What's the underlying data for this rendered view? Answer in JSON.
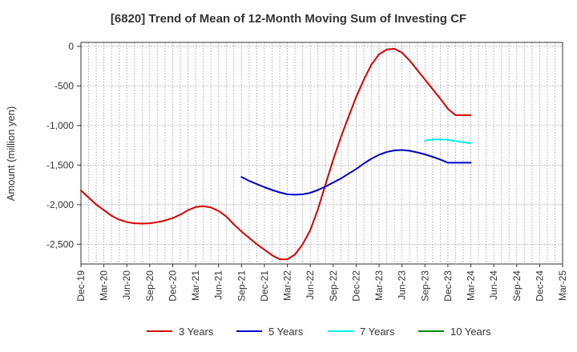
{
  "chart_data": {
    "type": "line",
    "title": "[6820]  Trend of Mean of 12-Month Moving Sum of Investing CF",
    "xlabel": "",
    "ylabel": "Amount (million yen)",
    "ylim": [
      -2750,
      50
    ],
    "yticks": [
      0,
      -500,
      -1000,
      -1500,
      -2000,
      -2500
    ],
    "ytick_labels": [
      "0",
      "-500",
      "-1,000",
      "-1,500",
      "-2,000",
      "-2,500"
    ],
    "xticks": [
      "Dec-19",
      "Mar-20",
      "Jun-20",
      "Sep-20",
      "Dec-20",
      "Mar-21",
      "Jun-21",
      "Sep-21",
      "Dec-21",
      "Mar-22",
      "Jun-22",
      "Sep-22",
      "Dec-22",
      "Mar-23",
      "Jun-23",
      "Sep-23",
      "Dec-23",
      "Mar-24",
      "Jun-24",
      "Sep-24",
      "Dec-24",
      "Mar-25"
    ],
    "grid": true,
    "legend_position": "bottom",
    "x_start": "Dec-19",
    "x_unit": "months since Dec-19",
    "series": [
      {
        "name": "3 Years",
        "color": "#dd0000",
        "x": [
          0,
          1,
          2,
          3,
          4,
          5,
          6,
          7,
          8,
          9,
          10,
          11,
          12,
          13,
          14,
          15,
          16,
          17,
          18,
          19,
          20,
          21,
          22,
          23,
          24,
          25,
          26,
          27,
          28,
          29,
          30,
          31,
          32,
          33,
          34,
          35,
          36,
          37,
          38,
          39,
          40,
          41,
          42,
          43,
          44,
          45,
          46,
          47,
          48,
          49,
          50,
          51
        ],
        "values": [
          -1820,
          -1910,
          -2000,
          -2070,
          -2140,
          -2190,
          -2220,
          -2235,
          -2240,
          -2235,
          -2220,
          -2200,
          -2170,
          -2125,
          -2070,
          -2030,
          -2020,
          -2035,
          -2080,
          -2150,
          -2250,
          -2340,
          -2420,
          -2500,
          -2570,
          -2640,
          -2690,
          -2690,
          -2630,
          -2500,
          -2320,
          -2060,
          -1740,
          -1430,
          -1150,
          -890,
          -640,
          -420,
          -230,
          -100,
          -40,
          -30,
          -80,
          -180,
          -300,
          -420,
          -540,
          -660,
          -790,
          -870,
          -870,
          -870
        ]
      },
      {
        "name": "5 Years",
        "color": "#0000cc",
        "x": [
          21,
          22,
          23,
          24,
          25,
          26,
          27,
          28,
          29,
          30,
          31,
          32,
          33,
          34,
          35,
          36,
          37,
          38,
          39,
          40,
          41,
          42,
          43,
          44,
          45,
          46,
          47,
          48,
          49,
          50,
          51
        ],
        "values": [
          -1650,
          -1700,
          -1740,
          -1780,
          -1815,
          -1845,
          -1870,
          -1875,
          -1870,
          -1850,
          -1815,
          -1770,
          -1720,
          -1670,
          -1610,
          -1550,
          -1480,
          -1420,
          -1370,
          -1335,
          -1315,
          -1310,
          -1320,
          -1340,
          -1365,
          -1395,
          -1430,
          -1470,
          -1470,
          -1470,
          -1470
        ]
      },
      {
        "name": "7 Years",
        "color": "#00eeee",
        "x": [
          45,
          46,
          47,
          48,
          49,
          50,
          51
        ],
        "values": [
          -1190,
          -1178,
          -1175,
          -1180,
          -1195,
          -1210,
          -1225
        ]
      },
      {
        "name": "10 Years",
        "color": "#008800",
        "x": [],
        "values": []
      }
    ]
  }
}
